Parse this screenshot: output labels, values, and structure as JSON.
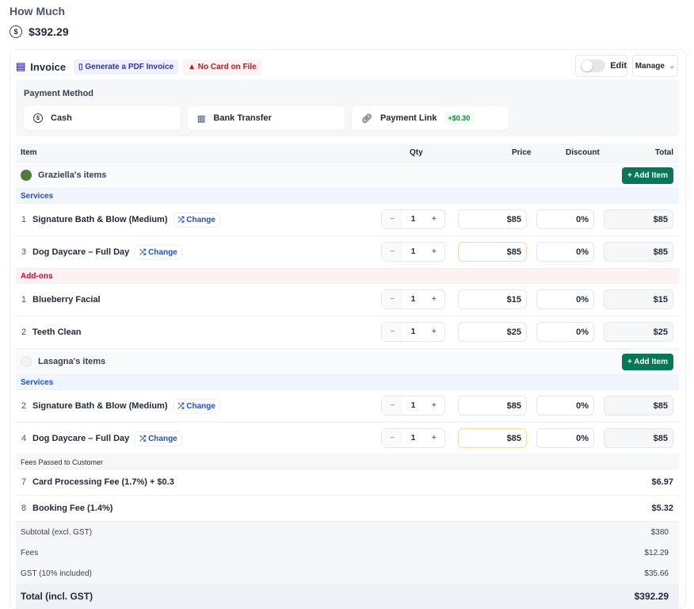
{
  "page": {
    "title": "How Much",
    "amount": "$392.29"
  },
  "invoice": {
    "title": "Invoice",
    "generate_pdf": "Generate a PDF Invoice",
    "no_card": "No Card on File",
    "edit_label": "Edit",
    "edit_on": false,
    "manage_label": "Manage"
  },
  "payment": {
    "label": "Payment Method",
    "options": [
      {
        "label": "Cash"
      },
      {
        "label": "Bank Transfer"
      },
      {
        "label": "Payment Link",
        "fee": "+$0.30"
      }
    ]
  },
  "table": {
    "headers": {
      "item": "Item",
      "qty": "Qty",
      "price": "Price",
      "discount": "Discount",
      "total": "Total"
    },
    "add_item": "+ Add Item",
    "change": "Change",
    "groups": [
      {
        "name": "Graziella's items",
        "sections": [
          {
            "label": "Services",
            "type": "svc",
            "items": [
              {
                "num": "1",
                "name": "Signature Bath & Blow (Medium)",
                "change": true,
                "qty": "1",
                "price": "$85",
                "discount": "0%",
                "total": "$85"
              },
              {
                "num": "3",
                "name": "Dog Daycare – Full Day",
                "change": true,
                "qty": "1",
                "price": "$85",
                "discount": "0%",
                "total": "$85",
                "hl": true
              }
            ]
          },
          {
            "label": "Add-ons",
            "type": "add-ons",
            "items": [
              {
                "num": "1",
                "name": "Blueberry Facial",
                "qty": "1",
                "price": "$15",
                "discount": "0%",
                "total": "$15"
              },
              {
                "num": "2",
                "name": "Teeth Clean",
                "qty": "1",
                "price": "$25",
                "discount": "0%",
                "total": "$25"
              }
            ]
          }
        ]
      },
      {
        "name": "Lasagna's items",
        "sections": [
          {
            "label": "Services",
            "type": "svc",
            "items": [
              {
                "num": "2",
                "name": "Signature Bath & Blow (Medium)",
                "change": true,
                "qty": "1",
                "price": "$85",
                "discount": "0%",
                "total": "$85"
              },
              {
                "num": "4",
                "name": "Dog Daycare – Full Day",
                "change": true,
                "qty": "1",
                "price": "$85",
                "discount": "0%",
                "total": "$85",
                "hl": true
              }
            ]
          }
        ]
      }
    ]
  },
  "fees": {
    "label": "Fees Passed to Customer",
    "items": [
      {
        "num": "7",
        "name": "Card Processing Fee (1.7%) + $0.3",
        "value": "$6.97"
      },
      {
        "num": "8",
        "name": "Booking Fee (1.4%)",
        "value": "$5.32"
      }
    ]
  },
  "summary": {
    "rows": [
      {
        "label": "Subtotal (excl. GST)",
        "value": "$380"
      },
      {
        "label": "Fees",
        "value": "$12.29"
      },
      {
        "label": "GST (10% included)",
        "value": "$35.66"
      }
    ],
    "total_label": "Total (incl. GST)",
    "total_value": "$392.29"
  }
}
